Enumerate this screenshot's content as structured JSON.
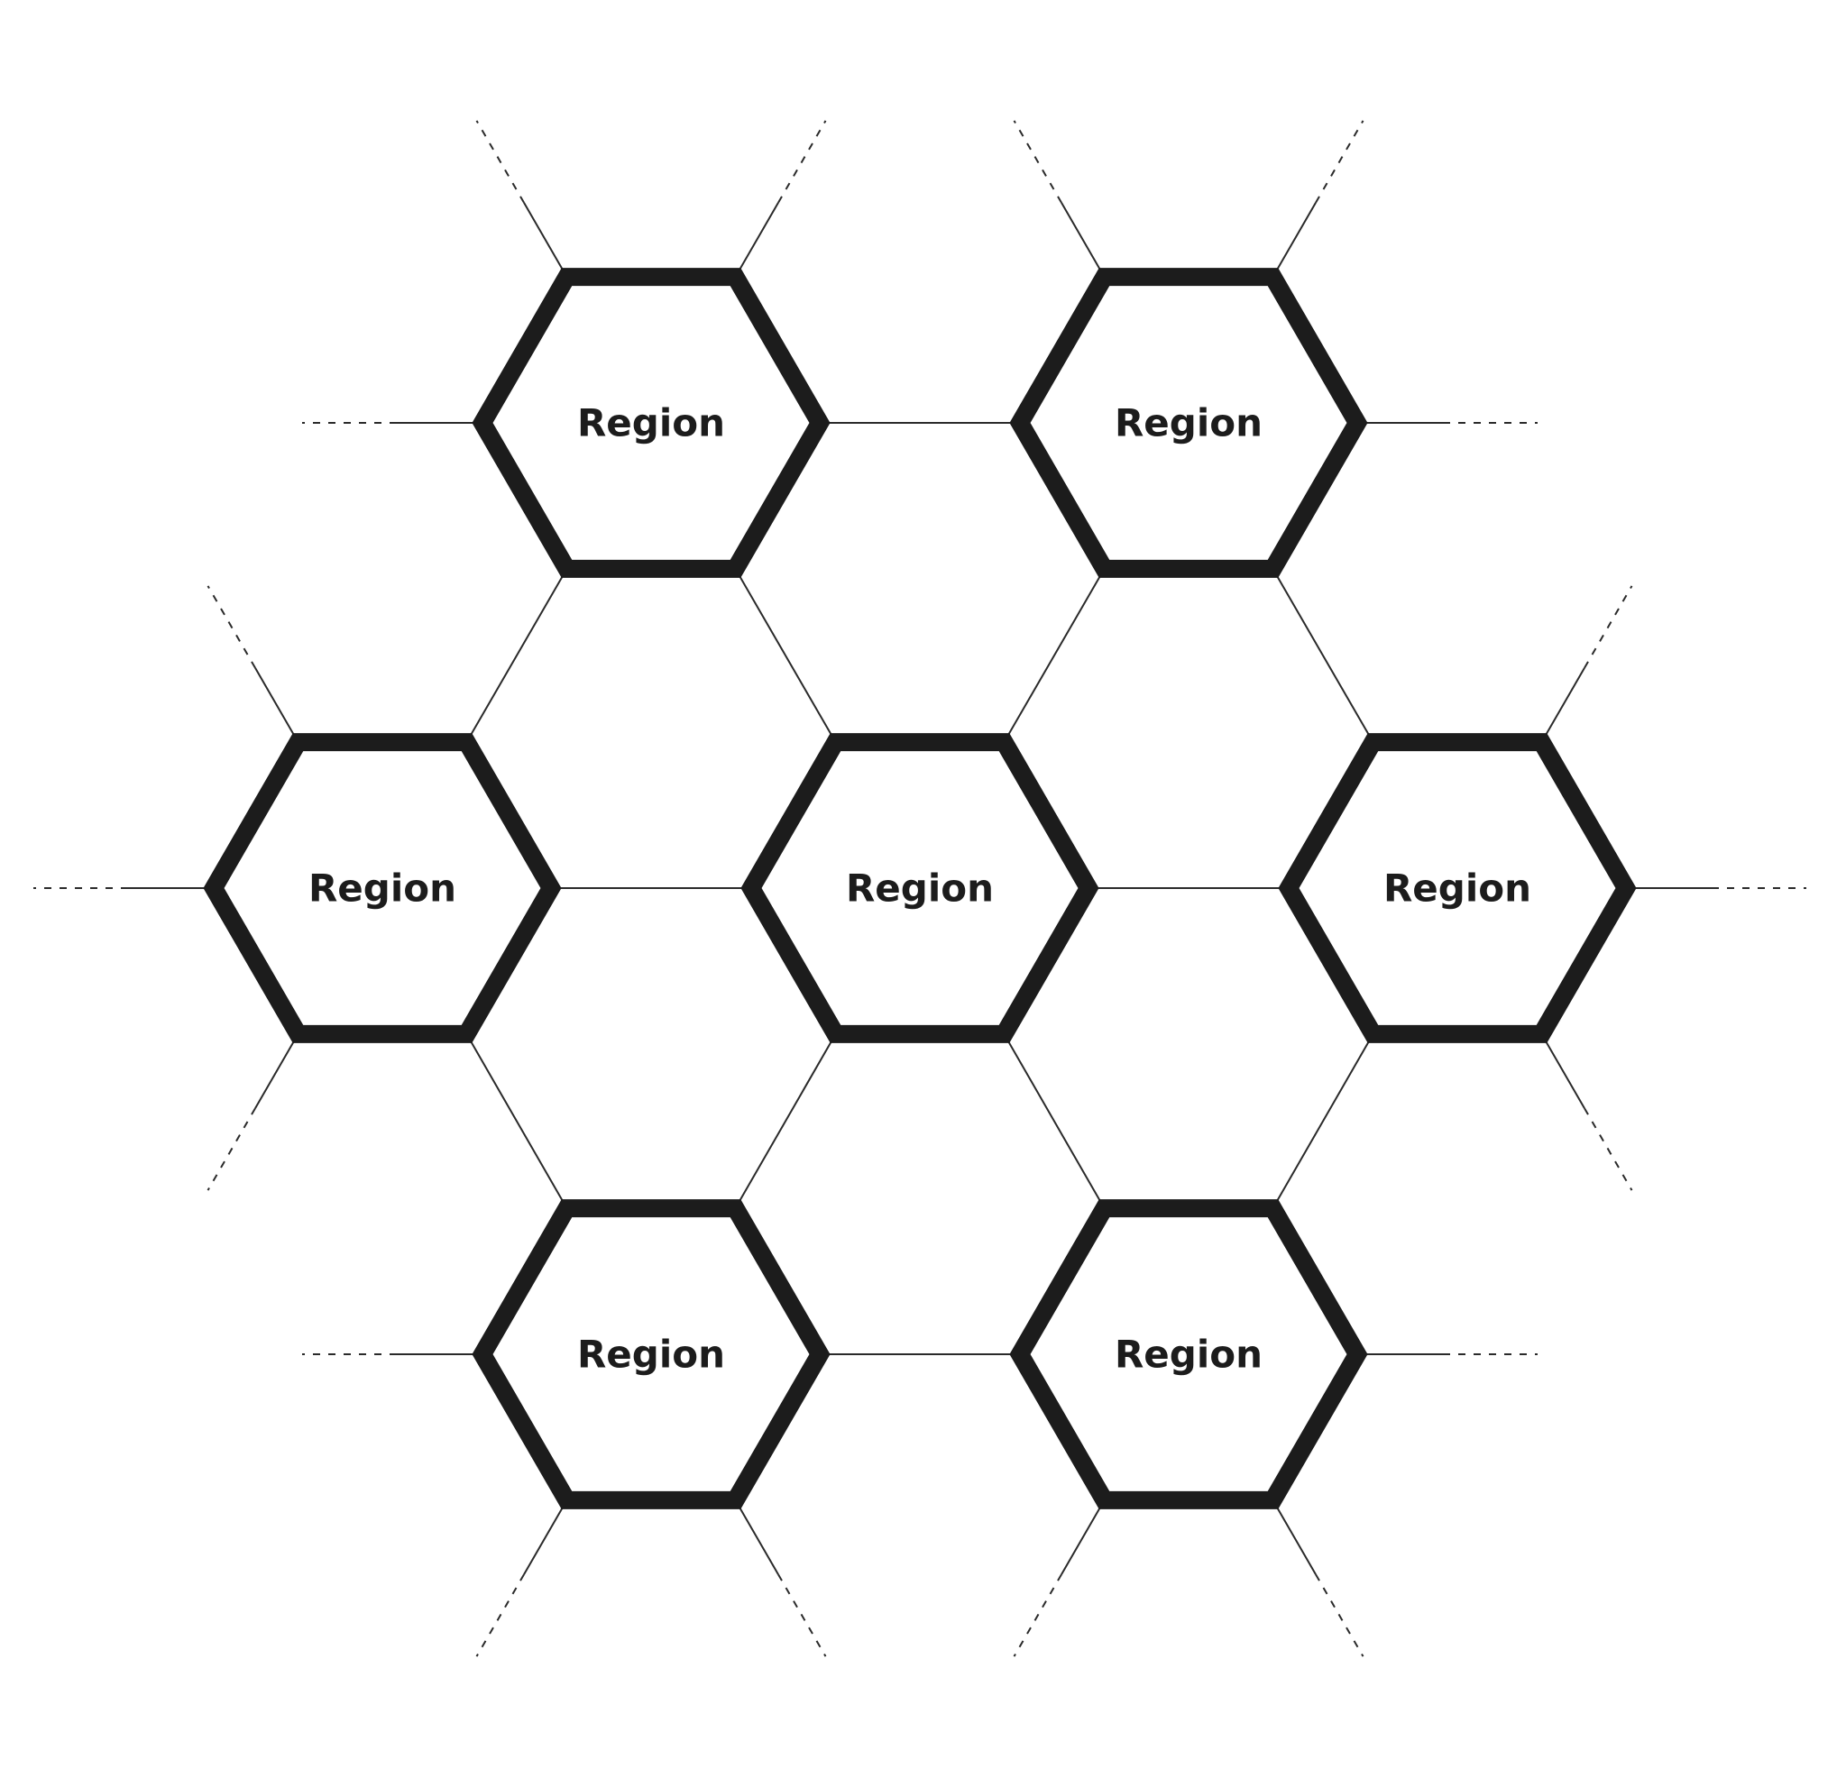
{
  "diagram": {
    "type": "hexagonal-region-network",
    "colors": {
      "stroke": "#1c1c1c",
      "connector": "#2a2a2a",
      "background": "#ffffff"
    },
    "regions": [
      {
        "id": "r1",
        "label": "Region",
        "position": "top-left"
      },
      {
        "id": "r2",
        "label": "Region",
        "position": "top-right"
      },
      {
        "id": "r3",
        "label": "Region",
        "position": "middle-left"
      },
      {
        "id": "r4",
        "label": "Region",
        "position": "center"
      },
      {
        "id": "r5",
        "label": "Region",
        "position": "middle-right"
      },
      {
        "id": "r6",
        "label": "Region",
        "position": "bottom-left"
      },
      {
        "id": "r7",
        "label": "Region",
        "position": "bottom-right"
      }
    ],
    "connections": [
      [
        "r1",
        "r2"
      ],
      [
        "r1",
        "r3"
      ],
      [
        "r1",
        "r4"
      ],
      [
        "r2",
        "r4"
      ],
      [
        "r2",
        "r5"
      ],
      [
        "r3",
        "r4"
      ],
      [
        "r4",
        "r5"
      ],
      [
        "r3",
        "r6"
      ],
      [
        "r4",
        "r6"
      ],
      [
        "r4",
        "r7"
      ],
      [
        "r5",
        "r7"
      ],
      [
        "r6",
        "r7"
      ]
    ],
    "open_ends": [
      {
        "region": "r1",
        "directions": [
          "west",
          "north-west",
          "north-east"
        ]
      },
      {
        "region": "r2",
        "directions": [
          "east",
          "north-west",
          "north-east"
        ]
      },
      {
        "region": "r3",
        "directions": [
          "west",
          "north-west",
          "south-west"
        ]
      },
      {
        "region": "r5",
        "directions": [
          "east",
          "north-east",
          "south-east"
        ]
      },
      {
        "region": "r6",
        "directions": [
          "west",
          "south-west",
          "south-east"
        ]
      },
      {
        "region": "r7",
        "directions": [
          "east",
          "south-west",
          "south-east"
        ]
      }
    ]
  }
}
